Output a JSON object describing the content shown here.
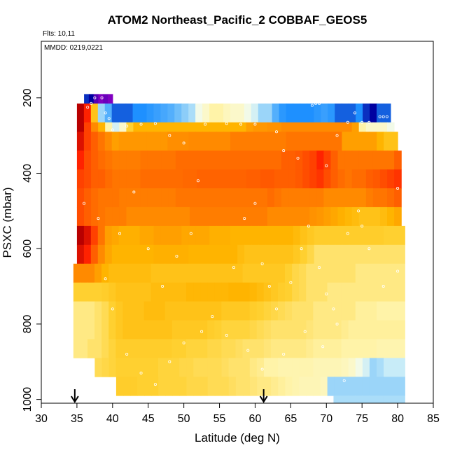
{
  "chart_data": {
    "type": "heatmap",
    "title": "ATOM2 Northeast_Pacific_2 COBBAF_GEOS5",
    "annotations": {
      "flights": "Flts: 10,11",
      "dates": "MMDD: 0219,0221"
    },
    "xlabel": "Latitude (deg N)",
    "ylabel": "PSXC (mbar)",
    "xlim": [
      30,
      85
    ],
    "ylim": [
      1010,
      50
    ],
    "y_inverted": true,
    "x_ticks": [
      30,
      35,
      40,
      45,
      50,
      55,
      60,
      65,
      70,
      75,
      80,
      85
    ],
    "y_ticks": [
      200,
      400,
      600,
      800,
      1000
    ],
    "grid": false,
    "arrows_at_latitude": [
      34.7,
      61.2
    ],
    "colors": {
      "deep_red": "#b80000",
      "red": "#ff2200",
      "orange": "#ff8a00",
      "light_orange": "#ffb400",
      "yellow": "#ffd030",
      "pale_yellow": "#fff3a8",
      "light_blue": "#c8ecf8",
      "blue": "#1e90ff",
      "dark_blue": "#0000a0",
      "purple": "#8000c0"
    },
    "bands": [
      {
        "p_top": 190,
        "p_bot": 215,
        "x_start": 36.0,
        "x_end": 40.0,
        "values": [
          0.4,
          0.3,
          0.1,
          0.0,
          0.05,
          0.0
        ]
      },
      {
        "p_top": 215,
        "p_bot": 265,
        "x_start": 35.0,
        "x_end": 79.0,
        "values": [
          9.5,
          8.5,
          5.0,
          1.5,
          1.0,
          0.5,
          0.5,
          0.5,
          0.6,
          0.6,
          0.7,
          0.8,
          0.9,
          1.0,
          1.2,
          1.4,
          1.6,
          2.5,
          3.0,
          3.5,
          3.5,
          3.2,
          3.0,
          3.0,
          2.5,
          2.0,
          1.5,
          1.5,
          1.0,
          0.7,
          0.6,
          0.6,
          0.6,
          0.6,
          0.7,
          0.8,
          0.7,
          0.5,
          0.5,
          0.5,
          0.6,
          0.4,
          0.3,
          0.5,
          0.5
        ]
      },
      {
        "p_top": 265,
        "p_bot": 290,
        "x_start": 35.0,
        "x_end": 79.5,
        "values": [
          9.5,
          8.0,
          6.5,
          5.5,
          3.5,
          2.0,
          3.0,
          4.5,
          5.5,
          5.5,
          5.5,
          5.5,
          5.5,
          5.5,
          5.5,
          5.5,
          5.5,
          5.5,
          5.5,
          5.5,
          5.5,
          5.5,
          5.5,
          5.5,
          6.0,
          6.2,
          6.2,
          6.3,
          6.3,
          6.5,
          6.5,
          6.5,
          6.5,
          6.5,
          6.5,
          6.5,
          6.5,
          6.5,
          6.5,
          6.0,
          3.5,
          3.0,
          3.0,
          3.0,
          2.5
        ]
      },
      {
        "p_top": 290,
        "p_bot": 340,
        "x_start": 35.0,
        "x_end": 80.0,
        "values": [
          9.0,
          8.0,
          7.5,
          7.0,
          6.5,
          6.0,
          6.2,
          6.2,
          6.2,
          6.2,
          6.2,
          6.2,
          6.2,
          6.4,
          6.4,
          6.4,
          6.5,
          6.5,
          6.5,
          6.5,
          6.5,
          6.5,
          6.8,
          6.8,
          6.8,
          6.8,
          6.8,
          6.8,
          6.8,
          6.8,
          7.0,
          7.0,
          7.0,
          7.0,
          7.0,
          7.0,
          7.0,
          7.0,
          6.0,
          6.0,
          6.0,
          6.0,
          6.0,
          5.5,
          5.0,
          5.0
        ]
      },
      {
        "p_top": 340,
        "p_bot": 390,
        "x_start": 35.0,
        "x_end": 80.5,
        "values": [
          8.5,
          7.8,
          7.5,
          7.2,
          7.0,
          6.8,
          6.8,
          6.8,
          6.8,
          7.0,
          7.0,
          7.0,
          7.0,
          7.0,
          7.2,
          7.2,
          7.2,
          7.2,
          7.2,
          7.2,
          7.2,
          7.2,
          7.2,
          7.2,
          7.2,
          7.2,
          7.2,
          7.2,
          7.2,
          7.5,
          7.5,
          7.6,
          7.8,
          8.0,
          8.5,
          8.0,
          7.5,
          7.0,
          7.0,
          7.0,
          7.0,
          7.0,
          7.0,
          7.0,
          7.0,
          7.5
        ]
      },
      {
        "p_top": 390,
        "p_bot": 440,
        "x_start": 35.0,
        "x_end": 80.5,
        "values": [
          8.0,
          7.8,
          7.5,
          7.5,
          7.2,
          7.0,
          7.0,
          7.0,
          7.0,
          7.2,
          7.2,
          7.2,
          7.2,
          7.2,
          7.2,
          7.3,
          7.3,
          7.4,
          7.4,
          7.4,
          7.4,
          7.4,
          7.4,
          7.4,
          7.5,
          7.5,
          7.6,
          7.6,
          7.5,
          7.5,
          7.5,
          7.6,
          7.8,
          8.0,
          8.2,
          7.8,
          7.5,
          7.2,
          7.0,
          7.2,
          7.2,
          7.5,
          7.6,
          7.8,
          8.0,
          8.2
        ]
      },
      {
        "p_top": 440,
        "p_bot": 490,
        "x_start": 35.0,
        "x_end": 80.5,
        "values": [
          7.8,
          7.5,
          7.2,
          7.0,
          7.0,
          7.0,
          6.8,
          6.8,
          6.8,
          6.8,
          6.8,
          6.8,
          6.8,
          6.8,
          7.0,
          7.0,
          7.0,
          7.0,
          7.0,
          7.0,
          7.0,
          7.0,
          7.0,
          7.0,
          7.0,
          7.0,
          7.0,
          7.2,
          7.0,
          6.8,
          6.8,
          6.8,
          6.8,
          6.8,
          6.8,
          6.5,
          6.5,
          6.5,
          6.5,
          6.5,
          6.5,
          6.8,
          7.0,
          7.0,
          7.2,
          7.5
        ]
      },
      {
        "p_top": 490,
        "p_bot": 540,
        "x_start": 35.0,
        "x_end": 80.5,
        "values": [
          7.8,
          7.5,
          7.2,
          7.0,
          6.8,
          6.8,
          6.8,
          6.5,
          6.5,
          6.5,
          6.5,
          6.5,
          6.5,
          6.5,
          6.5,
          6.5,
          6.8,
          6.8,
          6.8,
          6.8,
          6.8,
          6.8,
          6.8,
          6.8,
          6.8,
          6.8,
          6.8,
          6.5,
          6.5,
          6.5,
          6.5,
          6.5,
          6.5,
          6.3,
          6.2,
          6.0,
          5.8,
          5.6,
          5.4,
          5.2,
          5.0,
          5.0,
          5.0,
          5.2,
          5.5,
          5.8
        ]
      },
      {
        "p_top": 540,
        "p_bot": 590,
        "x_start": 35.0,
        "x_end": 81.0,
        "values": [
          9.5,
          9.0,
          8.0,
          7.0,
          6.0,
          5.8,
          5.6,
          5.6,
          5.6,
          5.8,
          5.8,
          6.0,
          6.0,
          6.0,
          6.0,
          5.8,
          5.8,
          5.8,
          5.8,
          5.6,
          5.6,
          5.6,
          5.5,
          5.5,
          5.5,
          5.5,
          5.5,
          5.5,
          5.5,
          5.5,
          5.5,
          5.3,
          5.0,
          4.8,
          4.6,
          4.6,
          4.6,
          4.6,
          4.6,
          4.6,
          4.6,
          4.6,
          4.6,
          4.6,
          4.5,
          4.5,
          4.5
        ]
      },
      {
        "p_top": 590,
        "p_bot": 640,
        "x_start": 35.0,
        "x_end": 81.0,
        "values": [
          9.0,
          8.5,
          7.5,
          6.5,
          5.8,
          5.5,
          5.5,
          5.5,
          5.5,
          5.5,
          5.5,
          5.6,
          5.6,
          5.6,
          5.6,
          5.6,
          5.5,
          5.5,
          5.5,
          5.5,
          5.5,
          5.5,
          5.5,
          5.2,
          5.0,
          5.0,
          5.0,
          5.0,
          5.0,
          5.0,
          5.0,
          4.8,
          4.5,
          4.3,
          4.0,
          4.0,
          4.0,
          4.0,
          4.0,
          4.0,
          4.0,
          4.0,
          4.0,
          4.0,
          4.0,
          4.0,
          4.0
        ]
      },
      {
        "p_top": 640,
        "p_bot": 690,
        "x_start": 34.5,
        "x_end": 81.0,
        "values": [
          6.5,
          6.5,
          6.5,
          6.0,
          5.5,
          5.2,
          5.2,
          5.2,
          5.2,
          5.2,
          5.2,
          5.0,
          5.0,
          5.0,
          5.0,
          5.0,
          5.0,
          5.0,
          5.0,
          5.0,
          5.0,
          5.0,
          5.0,
          5.0,
          4.8,
          4.8,
          4.8,
          4.8,
          4.8,
          4.8,
          4.5,
          4.3,
          4.2,
          4.0,
          4.0,
          4.0,
          4.0,
          4.0,
          4.0,
          4.0,
          3.8,
          3.8,
          3.8,
          3.8,
          3.8,
          3.8,
          3.8
        ]
      },
      {
        "p_top": 690,
        "p_bot": 740,
        "x_start": 34.5,
        "x_end": 81.0,
        "values": [
          4.5,
          4.5,
          4.5,
          4.5,
          4.6,
          4.8,
          5.0,
          5.0,
          5.0,
          5.0,
          5.0,
          5.2,
          5.2,
          5.2,
          5.2,
          5.2,
          5.4,
          5.4,
          5.4,
          5.4,
          5.4,
          5.4,
          5.5,
          5.5,
          5.5,
          5.4,
          5.2,
          5.0,
          4.8,
          4.6,
          4.5,
          4.3,
          4.2,
          4.0,
          4.0,
          4.0,
          3.8,
          3.8,
          3.8,
          3.8,
          3.8,
          3.8,
          3.8,
          3.8,
          3.8,
          3.8,
          3.8
        ]
      },
      {
        "p_top": 740,
        "p_bot": 790,
        "x_start": 34.5,
        "x_end": 81.0,
        "values": [
          3.8,
          3.8,
          3.8,
          4.0,
          4.2,
          4.5,
          4.8,
          5.0,
          5.0,
          5.0,
          5.2,
          5.2,
          5.2,
          5.0,
          5.0,
          5.0,
          5.0,
          5.0,
          5.0,
          5.0,
          5.0,
          4.8,
          4.8,
          4.8,
          4.8,
          4.6,
          4.5,
          4.4,
          4.3,
          4.2,
          4.1,
          4.0,
          4.0,
          4.0,
          3.8,
          3.8,
          3.8,
          3.8,
          3.8,
          3.8,
          3.6,
          3.6,
          3.6,
          3.5,
          3.5,
          3.5,
          3.5
        ]
      },
      {
        "p_top": 790,
        "p_bot": 840,
        "x_start": 34.5,
        "x_end": 81.0,
        "values": [
          3.8,
          3.8,
          3.8,
          4.0,
          4.2,
          4.5,
          4.8,
          5.0,
          5.0,
          5.0,
          5.0,
          5.0,
          5.0,
          5.0,
          4.8,
          4.8,
          4.8,
          4.8,
          4.8,
          4.6,
          4.5,
          4.4,
          4.4,
          4.4,
          4.4,
          4.3,
          4.2,
          4.1,
          4.0,
          4.0,
          4.0,
          4.0,
          4.0,
          3.9,
          3.8,
          3.8,
          3.8,
          3.8,
          3.7,
          3.6,
          3.6,
          3.6,
          3.6,
          3.6,
          3.6,
          3.6,
          3.6
        ]
      },
      {
        "p_top": 840,
        "p_bot": 890,
        "x_start": 34.5,
        "x_end": 81.0,
        "values": [
          3.8,
          3.8,
          4.0,
          4.0,
          4.2,
          4.4,
          4.6,
          4.6,
          4.6,
          4.6,
          4.6,
          4.6,
          4.6,
          4.6,
          4.5,
          4.5,
          4.4,
          4.4,
          4.4,
          4.3,
          4.3,
          4.2,
          4.2,
          4.1,
          4.0,
          4.0,
          4.0,
          3.9,
          3.8,
          3.8,
          3.8,
          3.8,
          3.8,
          3.7,
          3.6,
          3.6,
          3.6,
          3.6,
          3.5,
          3.5,
          3.5,
          3.5,
          3.5,
          3.4,
          3.4,
          3.4,
          3.4
        ]
      },
      {
        "p_top": 890,
        "p_bot": 940,
        "x_start": 37.5,
        "x_end": 81.0,
        "values": [
          4.2,
          4.3,
          4.4,
          4.5,
          4.5,
          4.5,
          4.5,
          4.5,
          4.5,
          4.4,
          4.4,
          4.4,
          4.3,
          4.3,
          4.2,
          4.2,
          4.2,
          4.2,
          4.1,
          4.0,
          4.0,
          4.0,
          3.8,
          3.7,
          3.5,
          3.5,
          3.4,
          3.4,
          3.4,
          3.4,
          3.4,
          3.3,
          3.3,
          3.3,
          3.3,
          3.2,
          3.0,
          2.5,
          2.0,
          1.5,
          1.6,
          1.8,
          1.8,
          1.8
        ]
      },
      {
        "p_top": 940,
        "p_bot": 990,
        "x_start": 40.5,
        "x_end": 81.0,
        "values": [
          4.6,
          4.6,
          4.6,
          4.5,
          4.5,
          4.5,
          4.4,
          4.4,
          4.4,
          4.4,
          4.3,
          4.3,
          4.3,
          4.2,
          4.2,
          4.2,
          4.1,
          4.0,
          4.0,
          3.9,
          3.8,
          3.8,
          3.7,
          3.6,
          3.5,
          3.4,
          3.3,
          3.3,
          3.3,
          3.2,
          1.5,
          1.5,
          1.5,
          1.5,
          1.5,
          1.5,
          1.5,
          1.5,
          1.5,
          1.5,
          1.5
        ]
      },
      {
        "p_top": 990,
        "p_bot": 1010,
        "x_start": 71.0,
        "x_end": 81.0,
        "values": [
          1.6,
          1.6,
          1.6,
          1.6,
          1.6,
          1.6,
          1.6,
          1.6,
          1.6,
          1.6
        ]
      }
    ],
    "points": [
      {
        "x": 36.5,
        "y": 225
      },
      {
        "x": 37.0,
        "y": 215
      },
      {
        "x": 37.5,
        "y": 200
      },
      {
        "x": 38.5,
        "y": 200
      },
      {
        "x": 39.0,
        "y": 240
      },
      {
        "x": 39.5,
        "y": 255
      },
      {
        "x": 40.0,
        "y": 285
      },
      {
        "x": 42.0,
        "y": 275
      },
      {
        "x": 44.0,
        "y": 270
      },
      {
        "x": 46.0,
        "y": 268
      },
      {
        "x": 48.0,
        "y": 300
      },
      {
        "x": 50.0,
        "y": 320
      },
      {
        "x": 53.0,
        "y": 270
      },
      {
        "x": 56.0,
        "y": 268
      },
      {
        "x": 58.0,
        "y": 270
      },
      {
        "x": 60.0,
        "y": 270
      },
      {
        "x": 63.0,
        "y": 290
      },
      {
        "x": 64.0,
        "y": 340
      },
      {
        "x": 66.0,
        "y": 360
      },
      {
        "x": 68.0,
        "y": 220
      },
      {
        "x": 68.5,
        "y": 215
      },
      {
        "x": 69.0,
        "y": 215
      },
      {
        "x": 70.0,
        "y": 380
      },
      {
        "x": 71.5,
        "y": 300
      },
      {
        "x": 73.0,
        "y": 265
      },
      {
        "x": 74.0,
        "y": 240
      },
      {
        "x": 75.0,
        "y": 265
      },
      {
        "x": 76.0,
        "y": 265
      },
      {
        "x": 77.5,
        "y": 250
      },
      {
        "x": 78.0,
        "y": 250
      },
      {
        "x": 78.5,
        "y": 250
      },
      {
        "x": 80.0,
        "y": 440
      },
      {
        "x": 36.0,
        "y": 480
      },
      {
        "x": 38.0,
        "y": 520
      },
      {
        "x": 41.0,
        "y": 560
      },
      {
        "x": 43.0,
        "y": 450
      },
      {
        "x": 45.0,
        "y": 600
      },
      {
        "x": 47.0,
        "y": 700
      },
      {
        "x": 49.0,
        "y": 620
      },
      {
        "x": 51.0,
        "y": 560
      },
      {
        "x": 52.0,
        "y": 420
      },
      {
        "x": 54.0,
        "y": 780
      },
      {
        "x": 56.0,
        "y": 830
      },
      {
        "x": 57.0,
        "y": 650
      },
      {
        "x": 58.5,
        "y": 520
      },
      {
        "x": 60.0,
        "y": 480
      },
      {
        "x": 61.0,
        "y": 640
      },
      {
        "x": 62.0,
        "y": 700
      },
      {
        "x": 63.0,
        "y": 760
      },
      {
        "x": 65.0,
        "y": 690
      },
      {
        "x": 66.5,
        "y": 600
      },
      {
        "x": 67.5,
        "y": 540
      },
      {
        "x": 69.0,
        "y": 650
      },
      {
        "x": 70.0,
        "y": 720
      },
      {
        "x": 71.0,
        "y": 760
      },
      {
        "x": 71.5,
        "y": 800
      },
      {
        "x": 72.5,
        "y": 950
      },
      {
        "x": 73.0,
        "y": 560
      },
      {
        "x": 74.5,
        "y": 500
      },
      {
        "x": 75.0,
        "y": 540
      },
      {
        "x": 76.0,
        "y": 600
      },
      {
        "x": 78.0,
        "y": 700
      },
      {
        "x": 80.0,
        "y": 660
      },
      {
        "x": 39.0,
        "y": 680
      },
      {
        "x": 40.0,
        "y": 760
      },
      {
        "x": 42.0,
        "y": 880
      },
      {
        "x": 44.0,
        "y": 930
      },
      {
        "x": 46.0,
        "y": 960
      },
      {
        "x": 48.0,
        "y": 900
      },
      {
        "x": 50.0,
        "y": 850
      },
      {
        "x": 52.5,
        "y": 820
      },
      {
        "x": 59.0,
        "y": 870
      },
      {
        "x": 61.0,
        "y": 920
      },
      {
        "x": 64.0,
        "y": 880
      },
      {
        "x": 67.0,
        "y": 820
      },
      {
        "x": 69.5,
        "y": 860
      }
    ]
  }
}
